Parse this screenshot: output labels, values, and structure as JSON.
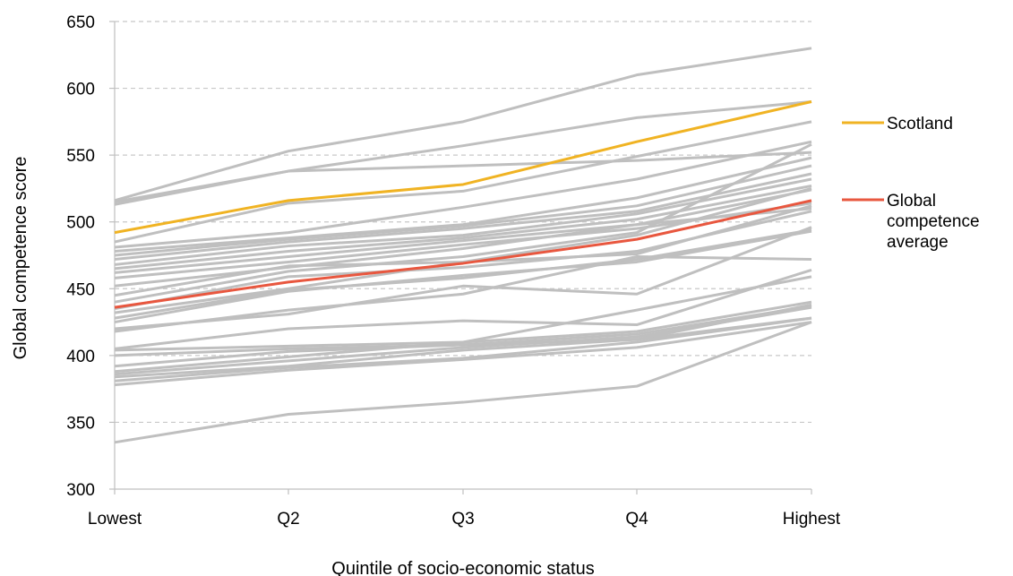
{
  "chart_data": {
    "type": "line",
    "title": "",
    "xlabel": "Quintile of socio-economic status",
    "ylabel": "Global competence score",
    "categories": [
      "Lowest",
      "Q2",
      "Q3",
      "Q4",
      "Highest"
    ],
    "ylim": [
      300,
      650
    ],
    "yticks": [
      300,
      350,
      400,
      450,
      500,
      550,
      600,
      650
    ],
    "grid": "horizontal dashed",
    "legend_position": "right",
    "colors": {
      "background_series": "#bfbfbf",
      "scotland": "#f0b323",
      "average": "#e8573f",
      "grid": "#c8c8c8",
      "axis": "#bfbfbf"
    },
    "series": [
      {
        "name": "Scotland",
        "values": [
          492,
          516,
          528,
          560,
          590
        ],
        "highlight": "scotland"
      },
      {
        "name": "Global competence average",
        "values": [
          436,
          455,
          469,
          487,
          516
        ],
        "highlight": "average"
      },
      {
        "values": [
          516,
          553,
          575,
          610,
          630
        ]
      },
      {
        "values": [
          515,
          538,
          557,
          578,
          590
        ]
      },
      {
        "values": [
          513,
          538,
          542,
          546,
          552
        ]
      },
      {
        "values": [
          485,
          514,
          523,
          549,
          575
        ]
      },
      {
        "values": [
          481,
          492,
          511,
          532,
          560
        ]
      },
      {
        "values": [
          478,
          488,
          498,
          518,
          548
        ]
      },
      {
        "values": [
          475,
          487,
          497,
          512,
          542
        ]
      },
      {
        "values": [
          472,
          485,
          495,
          508,
          536
        ]
      },
      {
        "values": [
          468,
          482,
          490,
          506,
          532
        ]
      },
      {
        "values": [
          465,
          478,
          488,
          502,
          527
        ]
      },
      {
        "values": [
          462,
          474,
          486,
          498,
          524
        ]
      },
      {
        "values": [
          458,
          470,
          483,
          495,
          514
        ]
      },
      {
        "values": [
          452,
          466,
          480,
          498,
          510
        ]
      },
      {
        "values": [
          445,
          467,
          470,
          476,
          512
        ]
      },
      {
        "values": [
          440,
          463,
          474,
          492,
          558
        ]
      },
      {
        "values": [
          435,
          459,
          466,
          478,
          508
        ]
      },
      {
        "values": [
          432,
          450,
          470,
          490,
          525
        ]
      },
      {
        "values": [
          428,
          449,
          458,
          472,
          494
        ]
      },
      {
        "values": [
          425,
          448,
          460,
          470,
          493
        ]
      },
      {
        "values": [
          420,
          431,
          452,
          446,
          496
        ]
      },
      {
        "values": [
          418,
          434,
          446,
          474,
          472
        ]
      },
      {
        "values": [
          405,
          420,
          426,
          423,
          464
        ]
      },
      {
        "values": [
          404,
          407,
          410,
          434,
          459
        ]
      },
      {
        "values": [
          400,
          405,
          408,
          412,
          428
        ]
      },
      {
        "values": [
          392,
          403,
          408,
          416,
          437
        ]
      },
      {
        "values": [
          388,
          399,
          410,
          418,
          440
        ]
      },
      {
        "values": [
          386,
          396,
          406,
          414,
          436
        ]
      },
      {
        "values": [
          384,
          392,
          404,
          412,
          438
        ]
      },
      {
        "values": [
          381,
          391,
          398,
          410,
          428
        ]
      },
      {
        "values": [
          378,
          389,
          397,
          406,
          425
        ]
      },
      {
        "values": [
          335,
          356,
          365,
          377,
          425
        ]
      }
    ]
  }
}
